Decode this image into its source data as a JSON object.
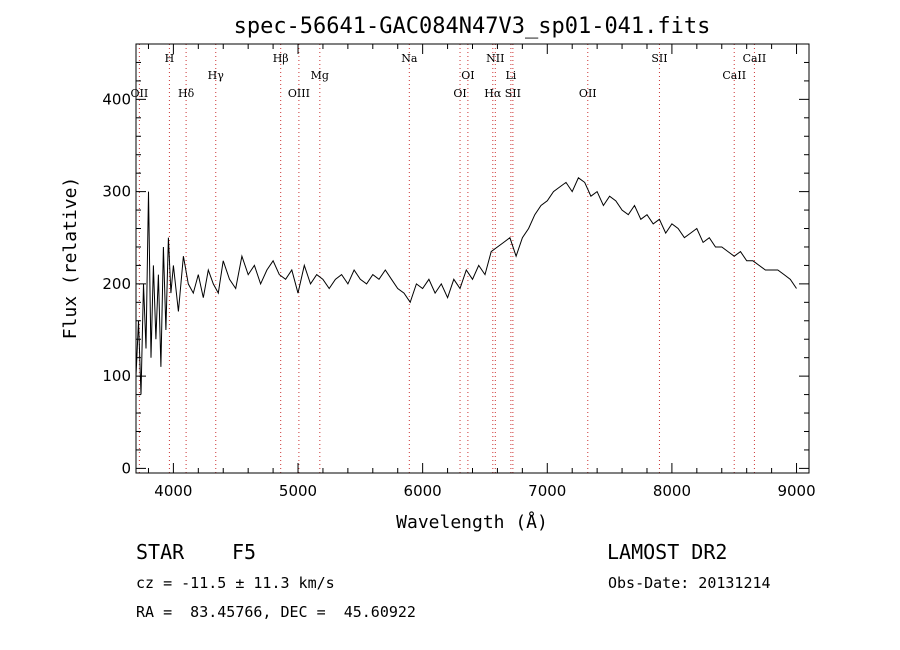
{
  "chart_data": {
    "type": "line",
    "title": "spec-56641-GAC084N47V3_sp01-041.fits",
    "xlabel": "Wavelength (Å)",
    "ylabel": "Flux (relative)",
    "xlim": [
      3700,
      9100
    ],
    "ylim": [
      -5,
      460
    ],
    "xticks": [
      4000,
      5000,
      6000,
      7000,
      8000,
      9000
    ],
    "yticks": [
      0,
      100,
      200,
      300,
      400
    ],
    "grid": false,
    "spectral_lines": [
      {
        "label": "OII",
        "x": 3727,
        "row": 3
      },
      {
        "label": "H",
        "x": 3968,
        "row": 1
      },
      {
        "label": "Hδ",
        "x": 4102,
        "row": 3
      },
      {
        "label": "Hγ",
        "x": 4340,
        "row": 2
      },
      {
        "label": "Hβ",
        "x": 4861,
        "row": 1
      },
      {
        "label": "OIII",
        "x": 5007,
        "row": 3
      },
      {
        "label": "Mg",
        "x": 5175,
        "row": 2
      },
      {
        "label": "Na",
        "x": 5893,
        "row": 1
      },
      {
        "label": "OI",
        "x": 6300,
        "row": 3
      },
      {
        "label": "OI",
        "x": 6363,
        "row": 2
      },
      {
        "label": "NII",
        "x": 6583,
        "row": 1
      },
      {
        "label": "Hα",
        "x": 6563,
        "row": 3
      },
      {
        "label": "Li",
        "x": 6708,
        "row": 2
      },
      {
        "label": "SII",
        "x": 6724,
        "row": 3
      },
      {
        "label": "OII",
        "x": 7325,
        "row": 3
      },
      {
        "label": "SII",
        "x": 7900,
        "row": 1
      },
      {
        "label": "CaII",
        "x": 8500,
        "row": 2
      },
      {
        "label": "CaII",
        "x": 8662,
        "row": 1
      }
    ],
    "series": [
      {
        "x": [
          3700,
          3720,
          3740,
          3760,
          3780,
          3800,
          3820,
          3840,
          3860,
          3880,
          3900,
          3920,
          3940,
          3960,
          3980,
          4000,
          4040,
          4080,
          4120,
          4160,
          4200,
          4240,
          4280,
          4320,
          4360,
          4400,
          4450,
          4500,
          4550,
          4600,
          4650,
          4700,
          4750,
          4800,
          4850,
          4900,
          4950,
          5000,
          5050,
          5100,
          5150,
          5200,
          5250,
          5300,
          5350,
          5400,
          5450,
          5500,
          5550,
          5600,
          5650,
          5700,
          5750,
          5800,
          5850,
          5900,
          5950,
          6000,
          6050,
          6100,
          6150,
          6200,
          6250,
          6300,
          6350,
          6400,
          6450,
          6500,
          6550,
          6600,
          6650,
          6700,
          6750,
          6800,
          6850,
          6900,
          6950,
          7000,
          7050,
          7100,
          7150,
          7200,
          7250,
          7300,
          7350,
          7400,
          7450,
          7500,
          7550,
          7600,
          7650,
          7700,
          7750,
          7800,
          7850,
          7900,
          7950,
          8000,
          8050,
          8100,
          8150,
          8200,
          8250,
          8300,
          8350,
          8400,
          8450,
          8500,
          8550,
          8600,
          8650,
          8700,
          8750,
          8800,
          8850,
          8900,
          8950,
          9000
        ],
        "y": [
          100,
          160,
          80,
          200,
          130,
          300,
          120,
          220,
          140,
          210,
          110,
          240,
          150,
          250,
          190,
          220,
          170,
          230,
          200,
          190,
          210,
          185,
          215,
          200,
          190,
          225,
          205,
          195,
          230,
          210,
          220,
          200,
          215,
          225,
          210,
          205,
          215,
          190,
          220,
          200,
          210,
          205,
          195,
          205,
          210,
          200,
          215,
          205,
          200,
          210,
          205,
          215,
          205,
          195,
          190,
          180,
          200,
          195,
          205,
          190,
          200,
          185,
          205,
          195,
          215,
          205,
          220,
          210,
          235,
          240,
          245,
          250,
          230,
          250,
          260,
          275,
          285,
          290,
          300,
          305,
          310,
          300,
          315,
          310,
          295,
          300,
          285,
          295,
          290,
          280,
          275,
          285,
          270,
          275,
          265,
          270,
          255,
          265,
          260,
          250,
          255,
          260,
          245,
          250,
          240,
          240,
          235,
          230,
          235,
          225,
          225,
          220,
          215,
          215,
          215,
          210,
          205,
          195
        ]
      }
    ]
  },
  "info": {
    "object_class": "STAR",
    "subclass": "F5",
    "survey": "LAMOST DR2",
    "cz": "cz = -11.5 ± 11.3 km/s",
    "obs_date": "Obs-Date: 20131214",
    "coords": "RA =  83.45766, DEC =  45.60922"
  }
}
